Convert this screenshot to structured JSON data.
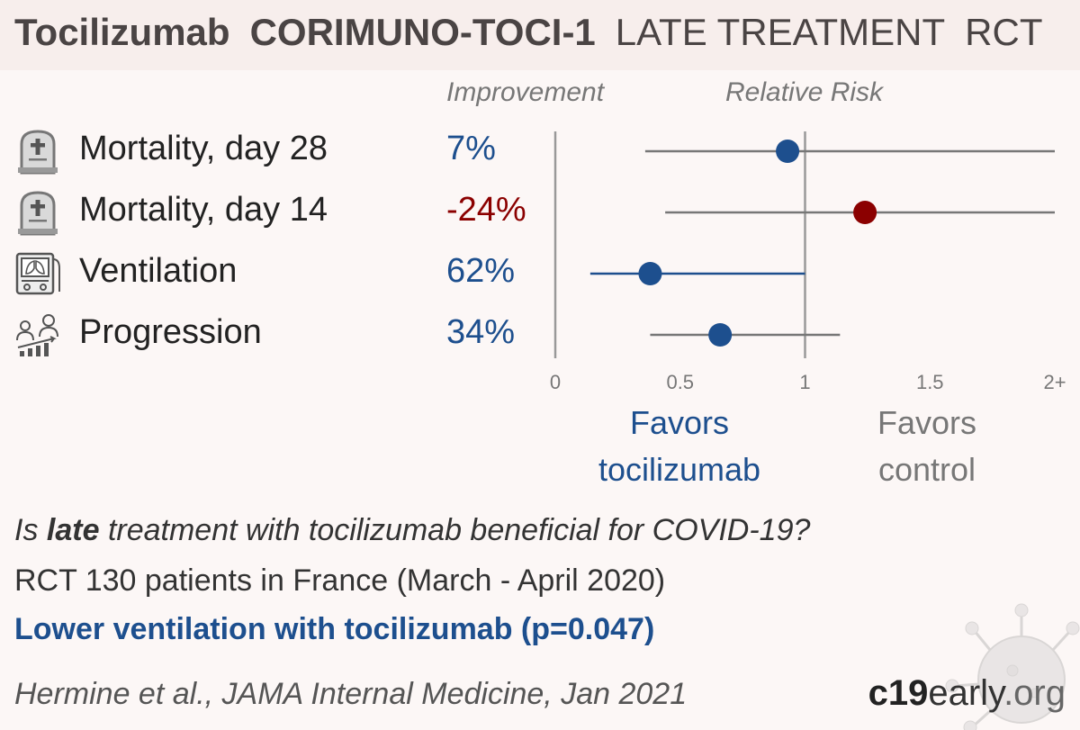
{
  "header": {
    "drug": "Tocilizumab",
    "trial": "CORIMUNO-TOCI-1",
    "stage": "LATE TREATMENT",
    "design": "RCT"
  },
  "columns": {
    "improvement": "Improvement",
    "relative_risk": "Relative Risk"
  },
  "outcomes": [
    {
      "icon": "tombstone-icon",
      "label": "Mortality, day 28",
      "improvement": "7%",
      "color": "#1d4f8e"
    },
    {
      "icon": "tombstone-icon",
      "label": "Mortality, day 14",
      "improvement": "-24%",
      "color": "#8b0000"
    },
    {
      "icon": "ventilator-icon",
      "label": "Ventilation",
      "improvement": "62%",
      "color": "#1d4f8e"
    },
    {
      "icon": "progression-icon",
      "label": "Progression",
      "improvement": "34%",
      "color": "#1d4f8e"
    }
  ],
  "chart_data": {
    "type": "scatter",
    "title": "",
    "xlabel": "",
    "ylabel": "",
    "xlim": [
      0,
      2
    ],
    "x_ticks": [
      "0",
      "0.5",
      "1",
      "1.5",
      "2+"
    ],
    "reference_line": 1,
    "series": [
      {
        "name": "Mortality, day 28",
        "rr": 0.93,
        "ci_low": 0.36,
        "ci_high": 2.0,
        "color": "#1d4f8e"
      },
      {
        "name": "Mortality, day 14",
        "rr": 1.24,
        "ci_low": 0.44,
        "ci_high": 2.0,
        "color": "#8b0000"
      },
      {
        "name": "Ventilation",
        "rr": 0.38,
        "ci_low": 0.14,
        "ci_high": 1.0,
        "color": "#1d4f8e"
      },
      {
        "name": "Progression",
        "rr": 0.66,
        "ci_low": 0.38,
        "ci_high": 1.14,
        "color": "#1d4f8e"
      }
    ],
    "favors_left": "Favors\ntocilizumab",
    "favors_right": "Favors\ncontrol"
  },
  "summary": {
    "question_pre": "Is ",
    "question_bold": "late",
    "question_post": " treatment with tocilizumab beneficial for COVID-19?",
    "details": "RCT 130 patients in France (March - April 2020)",
    "conclusion": "Lower ventilation with tocilizumab (p=0.047)",
    "citation": "Hermine et al., JAMA Internal Medicine, Jan 2021"
  },
  "brand": {
    "c19": "c19",
    "early": "early",
    "org": ".org"
  },
  "colors": {
    "accent_blue": "#1d4f8e",
    "harm_red": "#8b0000",
    "header_bg": "#f7eeec",
    "page_bg": "#fcf7f6"
  }
}
